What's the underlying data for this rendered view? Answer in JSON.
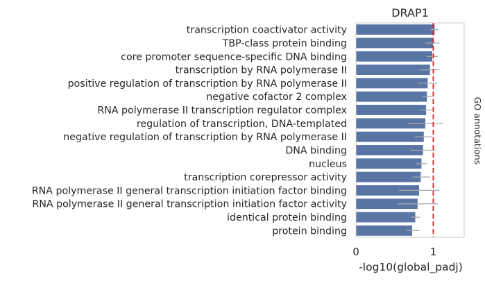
{
  "chart_data": {
    "type": "bar",
    "orientation": "horizontal",
    "title": "DRAP1",
    "xlabel": "-log10(global_padj)",
    "ylabel": "",
    "side_label": "GO annotations",
    "xlim": [
      0,
      1.4
    ],
    "xticks": [
      0,
      1
    ],
    "xtick_labels": [
      "0",
      "1"
    ],
    "reference_line": {
      "x": 1.0,
      "color": "#d62728",
      "style": "dashed"
    },
    "grid": "vertical at ticks",
    "bar_color": "#5875a4",
    "errorbar_color": "#a9a9a9",
    "categories": [
      "transcription coactivator activity",
      "TBP-class protein binding",
      "core promoter sequence-specific DNA binding",
      "transcription by RNA polymerase II",
      "positive regulation of transcription by RNA polymerase II",
      "negative cofactor 2 complex",
      "RNA polymerase II transcription regulator complex",
      "regulation of transcription, DNA-templated",
      "negative regulation of transcription by RNA polymerase II",
      "DNA binding",
      "nucleus",
      "transcription corepressor activity",
      "RNA polymerase II general transcription initiation factor binding",
      "RNA polymerase II general transcription initiation factor activity",
      "identical protein binding",
      "protein binding"
    ],
    "values": [
      1.02,
      1.0,
      0.99,
      0.96,
      0.93,
      0.92,
      0.91,
      0.9,
      0.88,
      0.87,
      0.85,
      0.84,
      0.82,
      0.8,
      0.77,
      0.73
    ],
    "error_low": [
      0.97,
      0.9,
      0.92,
      0.82,
      0.8,
      0.86,
      0.84,
      0.67,
      0.76,
      0.71,
      0.78,
      0.73,
      0.56,
      0.54,
      0.71,
      0.65
    ],
    "error_high": [
      1.07,
      1.08,
      1.06,
      1.08,
      1.05,
      0.98,
      0.98,
      1.13,
      0.99,
      1.03,
      0.92,
      0.96,
      1.08,
      1.06,
      0.83,
      0.82
    ]
  }
}
